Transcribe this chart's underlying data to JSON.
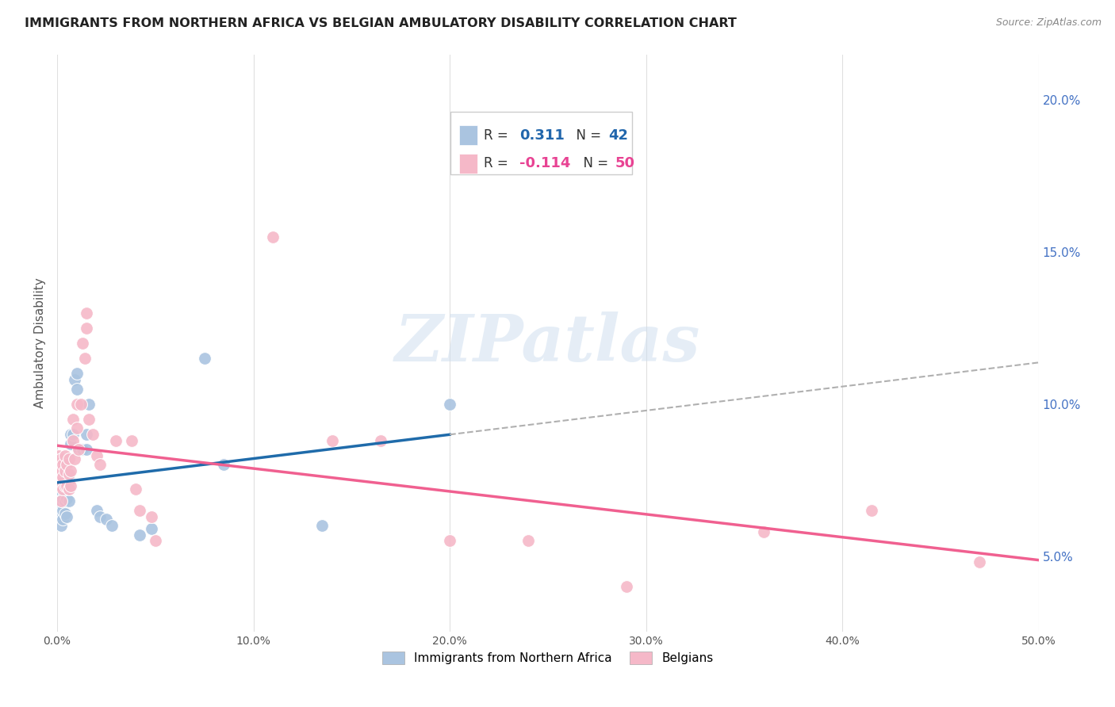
{
  "title": "IMMIGRANTS FROM NORTHERN AFRICA VS BELGIAN AMBULATORY DISABILITY CORRELATION CHART",
  "source": "Source: ZipAtlas.com",
  "ylabel": "Ambulatory Disability",
  "xlim": [
    0.0,
    0.5
  ],
  "ylim": [
    0.025,
    0.215
  ],
  "xticks": [
    0.0,
    0.1,
    0.2,
    0.3,
    0.4,
    0.5
  ],
  "yticks_right": [
    0.05,
    0.1,
    0.15,
    0.2
  ],
  "background_color": "#ffffff",
  "grid_color": "#e0e0e0",
  "series1_label": "Immigrants from Northern Africa",
  "series1_color": "#aac4e0",
  "series1_R": "0.311",
  "series1_N": "42",
  "series1_x": [
    0.001,
    0.001,
    0.001,
    0.001,
    0.002,
    0.002,
    0.002,
    0.002,
    0.002,
    0.003,
    0.003,
    0.003,
    0.003,
    0.004,
    0.004,
    0.004,
    0.005,
    0.005,
    0.005,
    0.006,
    0.006,
    0.007,
    0.007,
    0.008,
    0.009,
    0.01,
    0.01,
    0.011,
    0.013,
    0.015,
    0.015,
    0.016,
    0.02,
    0.022,
    0.025,
    0.028,
    0.042,
    0.048,
    0.075,
    0.085,
    0.135,
    0.2
  ],
  "series1_y": [
    0.072,
    0.068,
    0.065,
    0.063,
    0.075,
    0.07,
    0.067,
    0.063,
    0.06,
    0.074,
    0.069,
    0.065,
    0.062,
    0.073,
    0.068,
    0.064,
    0.074,
    0.069,
    0.063,
    0.075,
    0.068,
    0.09,
    0.087,
    0.09,
    0.108,
    0.11,
    0.105,
    0.085,
    0.085,
    0.09,
    0.085,
    0.1,
    0.065,
    0.063,
    0.062,
    0.06,
    0.057,
    0.059,
    0.115,
    0.08,
    0.06,
    0.1
  ],
  "series2_label": "Belgians",
  "series2_color": "#f5b8c8",
  "series2_R": "-0.114",
  "series2_N": "50",
  "series2_x": [
    0.001,
    0.001,
    0.001,
    0.002,
    0.002,
    0.002,
    0.002,
    0.003,
    0.003,
    0.003,
    0.004,
    0.004,
    0.004,
    0.005,
    0.005,
    0.006,
    0.006,
    0.006,
    0.007,
    0.007,
    0.008,
    0.008,
    0.009,
    0.01,
    0.01,
    0.011,
    0.012,
    0.013,
    0.014,
    0.015,
    0.015,
    0.016,
    0.018,
    0.02,
    0.022,
    0.03,
    0.038,
    0.04,
    0.042,
    0.048,
    0.05,
    0.11,
    0.14,
    0.165,
    0.2,
    0.24,
    0.29,
    0.36,
    0.415,
    0.47
  ],
  "series2_y": [
    0.083,
    0.078,
    0.075,
    0.082,
    0.078,
    0.073,
    0.068,
    0.08,
    0.076,
    0.072,
    0.083,
    0.078,
    0.073,
    0.08,
    0.073,
    0.082,
    0.077,
    0.072,
    0.078,
    0.073,
    0.095,
    0.088,
    0.082,
    0.1,
    0.092,
    0.085,
    0.1,
    0.12,
    0.115,
    0.13,
    0.125,
    0.095,
    0.09,
    0.083,
    0.08,
    0.088,
    0.088,
    0.072,
    0.065,
    0.063,
    0.055,
    0.155,
    0.088,
    0.088,
    0.055,
    0.055,
    0.04,
    0.058,
    0.065,
    0.048
  ],
  "line1_color": "#1f6baa",
  "line2_color": "#f06090",
  "line_dashed_color": "#b0b0b0",
  "watermark_text": "ZIPatlas",
  "watermark_color": "#ccddef",
  "watermark_alpha": 0.5,
  "legend_box_color": "#cccccc",
  "legend_R_label_color": "#333333",
  "legend_R1_value_color": "#2166ac",
  "legend_R2_value_color": "#e84393",
  "legend_N1_value_color": "#2166ac",
  "legend_N2_value_color": "#e84393"
}
